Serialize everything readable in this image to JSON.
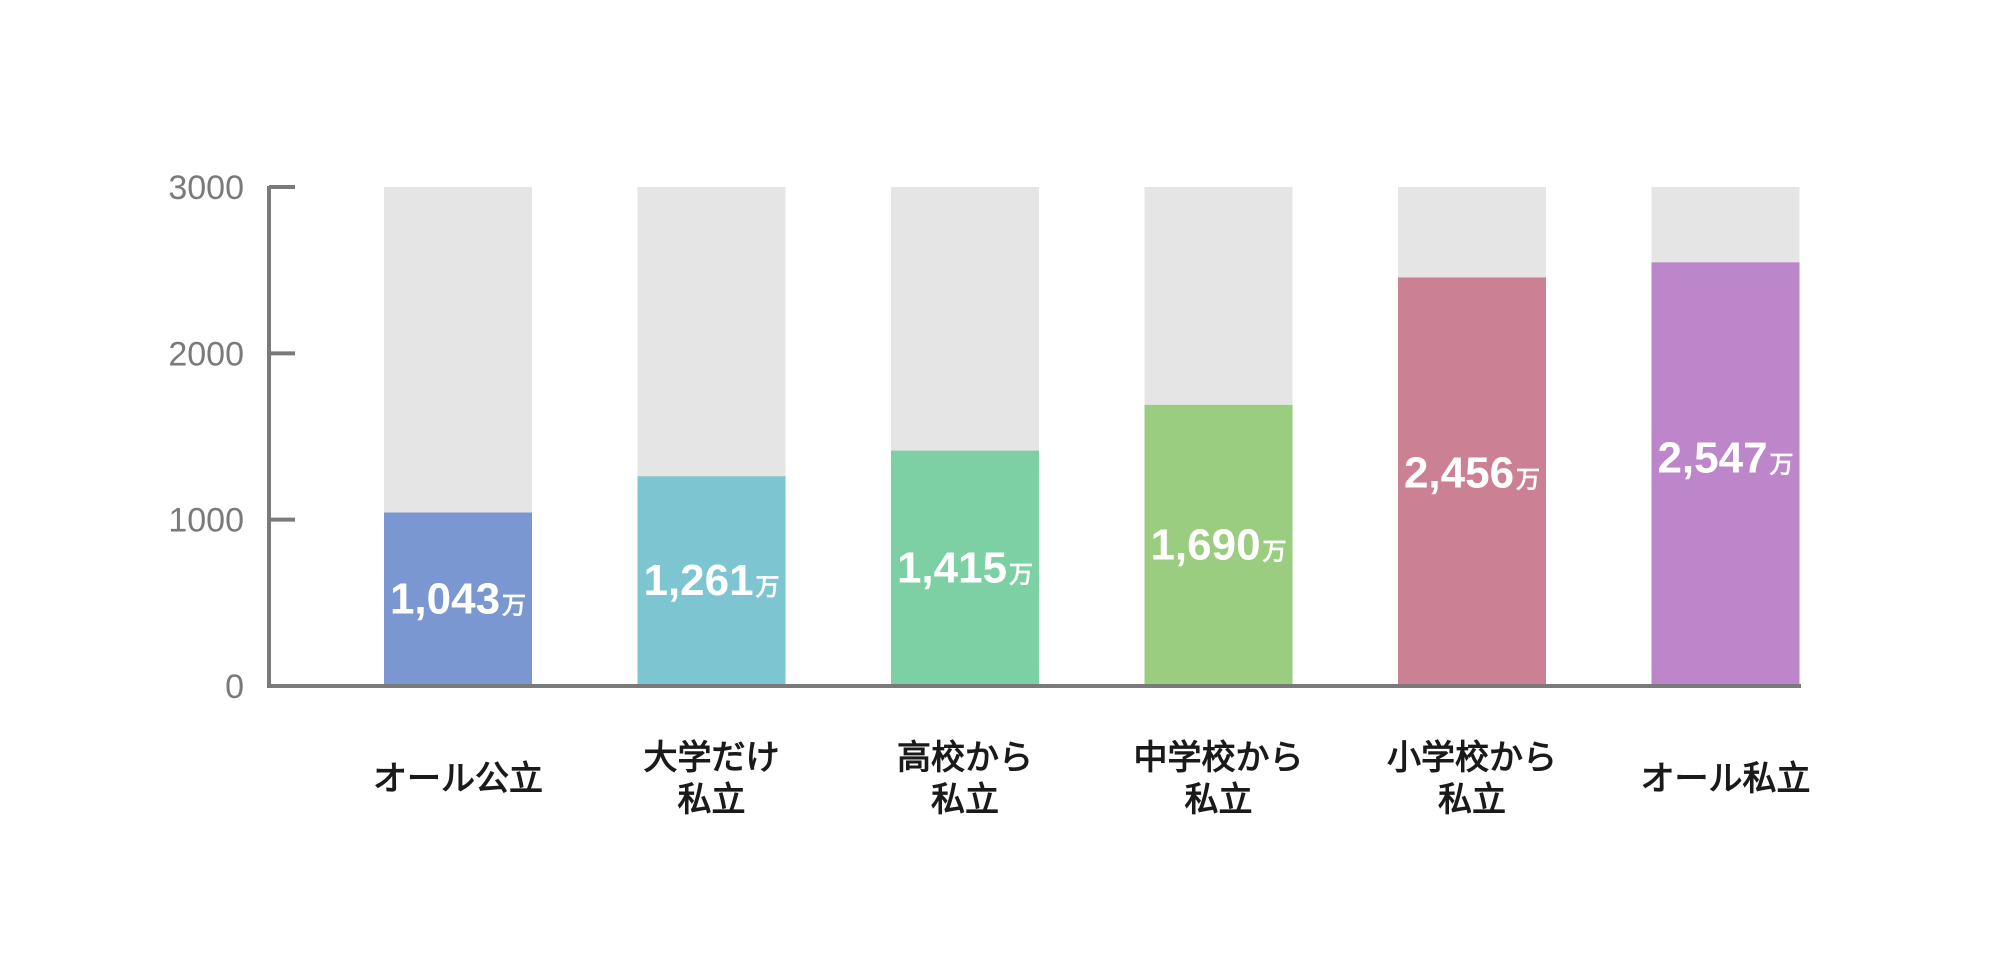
{
  "chart_data": {
    "type": "bar",
    "categories": [
      [
        "オール公立"
      ],
      [
        "大学だけ",
        "私立"
      ],
      [
        "高校から",
        "私立"
      ],
      [
        "中学校から",
        "私立"
      ],
      [
        "小学校から",
        "私立"
      ],
      [
        "オール私立"
      ]
    ],
    "values": [
      1043,
      1261,
      1415,
      1690,
      2456,
      2547
    ],
    "data_labels": [
      "1,043",
      "1,261",
      "1,415",
      "1,690",
      "2,456",
      "2,547"
    ],
    "unit": "万",
    "colors": [
      "#7b97d1",
      "#7dc6d1",
      "#7dcfa4",
      "#9acd7f",
      "#cc8093",
      "#bd85ca"
    ],
    "background_color": "#e5e5e5",
    "ylim": [
      0,
      3000
    ],
    "yticks": [
      0,
      1000,
      2000,
      3000
    ],
    "title": "",
    "xlabel": "",
    "ylabel": "",
    "grid": false,
    "legend": "none"
  }
}
